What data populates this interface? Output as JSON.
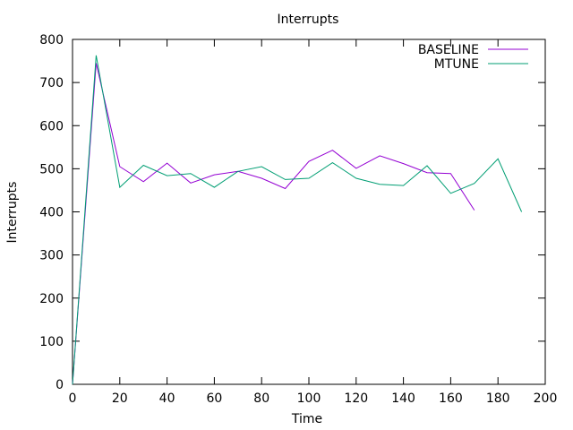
{
  "chart_data": {
    "type": "line",
    "title": "Interrupts",
    "xlabel": "Time",
    "ylabel": "Interrupts",
    "xlim": [
      0,
      200
    ],
    "ylim": [
      0,
      800
    ],
    "x_ticks": [
      0,
      20,
      40,
      60,
      80,
      100,
      120,
      140,
      160,
      180,
      200
    ],
    "y_ticks": [
      0,
      100,
      200,
      300,
      400,
      500,
      600,
      700,
      800
    ],
    "grid": false,
    "legend_position": "top-right",
    "series": [
      {
        "name": "BASELINE",
        "color": "#9400d3",
        "x": [
          0,
          10,
          20,
          30,
          40,
          50,
          60,
          70,
          80,
          90,
          100,
          110,
          120,
          130,
          140,
          150,
          160,
          170
        ],
        "values": [
          0,
          745,
          505,
          470,
          513,
          467,
          486,
          494,
          478,
          454,
          517,
          543,
          501,
          530,
          512,
          491,
          489,
          404
        ]
      },
      {
        "name": "MTUNE",
        "color": "#009e73",
        "x": [
          0,
          10,
          20,
          30,
          40,
          50,
          60,
          70,
          80,
          90,
          100,
          110,
          120,
          130,
          140,
          150,
          160,
          170,
          180,
          190
        ],
        "values": [
          0,
          763,
          457,
          508,
          484,
          489,
          457,
          494,
          505,
          475,
          478,
          514,
          478,
          464,
          461,
          507,
          443,
          466,
          523,
          400
        ]
      }
    ]
  }
}
